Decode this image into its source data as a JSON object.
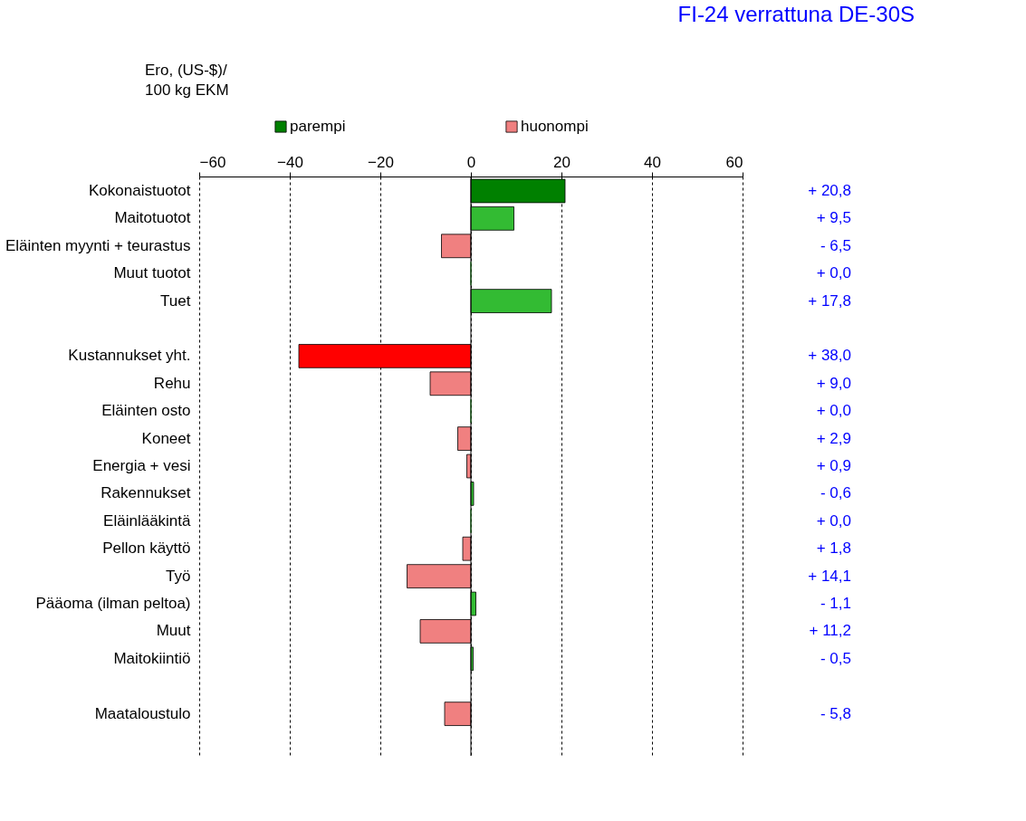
{
  "chart_data": {
    "type": "bar",
    "orientation": "horizontal",
    "title": "FI-24 verrattuna DE-30S",
    "xlabel": "Ero, (US-$)/\n100 kg EKM",
    "categories": [
      "Kokonaistuotot",
      "Maitotuotot",
      "Eläinten myynti + teurastus",
      "Muut tuotot",
      "Tuet",
      null,
      "Kustannukset yht.",
      "Rehu",
      "Eläinten osto",
      "Koneet",
      "Energia + vesi",
      "Rakennukset",
      "Eläinlääkintä",
      "Pellon käyttö",
      "Työ",
      "Pääoma (ilman peltoa)",
      "Muut",
      "Maitokiintiö",
      null,
      "Maataloustulo",
      null
    ],
    "series": [
      {
        "name": "parempi",
        "color": "#008000",
        "colors": [
          "#008000",
          "#33bb33",
          null,
          "#33bb33",
          "#33bb33",
          null,
          null,
          null,
          "#33bb33",
          null,
          null,
          "#33bb33",
          "#33bb33",
          null,
          null,
          "#33bb33",
          null,
          "#33bb33",
          null,
          null,
          null
        ],
        "values": [
          20.8,
          9.5,
          null,
          0.0,
          17.8,
          null,
          null,
          null,
          0.0,
          null,
          null,
          0.6,
          0.0,
          null,
          null,
          1.1,
          null,
          0.5,
          null,
          null,
          null
        ]
      },
      {
        "name": "huonompi",
        "color": "#f08080",
        "colors": [
          null,
          null,
          "#f08080",
          null,
          null,
          null,
          "#ff0000",
          "#f08080",
          null,
          "#f08080",
          "#f08080",
          null,
          null,
          "#f08080",
          "#f08080",
          null,
          "#f08080",
          null,
          null,
          "#f08080",
          null
        ],
        "values": [
          null,
          null,
          -6.5,
          null,
          null,
          null,
          -38.0,
          -9.0,
          null,
          -2.9,
          -0.9,
          null,
          null,
          -1.8,
          -14.1,
          null,
          -11.2,
          null,
          null,
          -5.8,
          null
        ]
      }
    ],
    "annotations": [
      "+ 20,8",
      "+ 9,5",
      "- 6,5",
      "+ 0,0",
      "+ 17,8",
      "+ 38,0",
      "+ 9,0",
      "+ 0,0",
      "+ 2,9",
      "+ 0,9",
      "- 0,6",
      "+ 0,0",
      "+ 1,8",
      "+ 14,1",
      "- 1,1",
      "+ 11,2",
      "- 0,5",
      "- 5,8"
    ],
    "xlim": [
      -60,
      60
    ],
    "xticks": [
      -60,
      -40,
      -20,
      0,
      20,
      40,
      60
    ],
    "grid": "x",
    "legend": "top"
  }
}
